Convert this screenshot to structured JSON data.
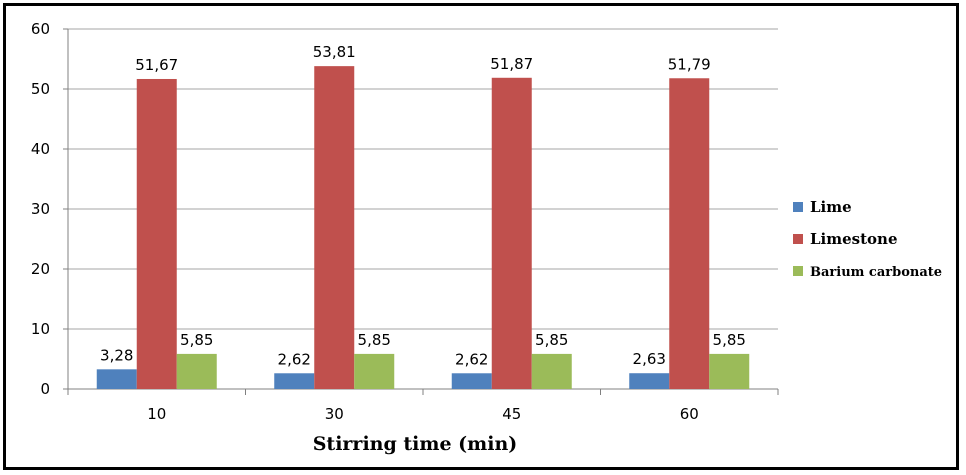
{
  "chart_data": {
    "type": "bar",
    "categories": [
      "10",
      "30",
      "45",
      "60"
    ],
    "series": [
      {
        "name": "Lime",
        "values": [
          3.28,
          2.62,
          2.62,
          2.63
        ],
        "labels": [
          "3,28",
          "2,62",
          "2,62",
          "2,63"
        ],
        "color": "#4f81bd"
      },
      {
        "name": "Limestone",
        "values": [
          51.67,
          53.81,
          51.87,
          51.79
        ],
        "labels": [
          "51,67",
          "53,81",
          "51,87",
          "51,79"
        ],
        "color": "#c0504d"
      },
      {
        "name": "Barium carbonate",
        "values": [
          5.85,
          5.85,
          5.85,
          5.85
        ],
        "labels": [
          "5,85",
          "5,85",
          "5,85",
          "5,85"
        ],
        "color": "#9bbb59"
      }
    ],
    "xlabel": "Stirring time (min)",
    "ylabel": "",
    "ylim": [
      0,
      60
    ],
    "yticks": [
      "0",
      "10",
      "20",
      "30",
      "40",
      "50",
      "60"
    ],
    "grid": true,
    "legend_position": "right"
  }
}
